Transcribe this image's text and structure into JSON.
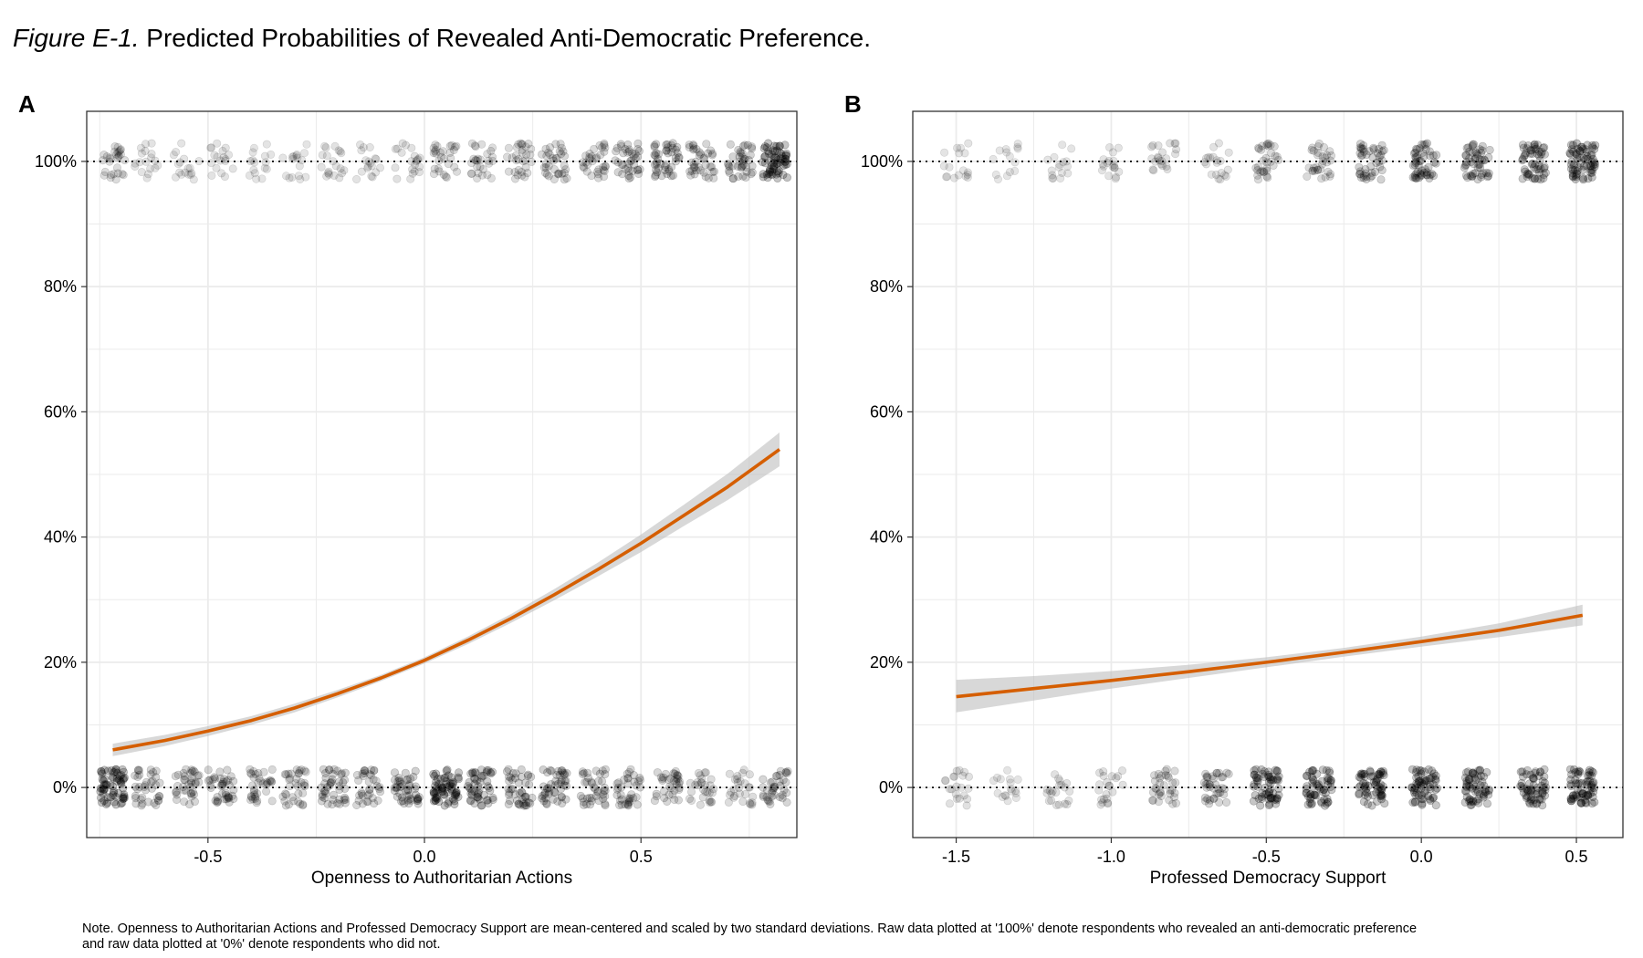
{
  "figure": {
    "label": "Figure E-1.",
    "title": "Predicted Probabilities of Revealed Anti-Democratic Preference.",
    "note_line1": "Note. Openness to Authoritarian Actions and Professed Democracy Support are mean-centered and scaled by two standard deviations. Raw data plotted at '100%' denote respondents who revealed an anti-democratic preference",
    "note_line2": "and raw data plotted at '0%' denote respondents who did not."
  },
  "colors": {
    "line": "#d55e00",
    "ribbon": "#bebebe",
    "points": "#000000",
    "grid": "#ebebeb",
    "panel_border": "#333333"
  },
  "chart_data": [
    {
      "panel": "A",
      "type": "line",
      "xlabel": "Openness to Authoritarian Actions",
      "ylabel": "",
      "xlim": [
        -0.78,
        0.86
      ],
      "ylim": [
        -0.08,
        1.08
      ],
      "xticks": [
        -0.5,
        0.0,
        0.5
      ],
      "xtick_labels": [
        "-0.5",
        "0.0",
        "0.5"
      ],
      "yticks": [
        0,
        0.2,
        0.4,
        0.6,
        0.8,
        1.0
      ],
      "ytick_labels": [
        "0%",
        "20%",
        "40%",
        "60%",
        "80%",
        "100%"
      ],
      "reference_lines": [
        0,
        1
      ],
      "series": [
        {
          "x": [
            -0.72,
            -0.6,
            -0.5,
            -0.4,
            -0.3,
            -0.2,
            -0.1,
            0.0,
            0.1,
            0.2,
            0.3,
            0.4,
            0.5,
            0.6,
            0.7,
            0.82
          ],
          "y": [
            0.06,
            0.075,
            0.09,
            0.107,
            0.127,
            0.15,
            0.175,
            0.203,
            0.235,
            0.27,
            0.308,
            0.348,
            0.39,
            0.435,
            0.48,
            0.54
          ],
          "lower": [
            0.05,
            0.066,
            0.082,
            0.1,
            0.12,
            0.144,
            0.17,
            0.198,
            0.229,
            0.263,
            0.299,
            0.337,
            0.376,
            0.418,
            0.459,
            0.513
          ],
          "upper": [
            0.07,
            0.084,
            0.098,
            0.114,
            0.134,
            0.156,
            0.18,
            0.208,
            0.241,
            0.277,
            0.317,
            0.359,
            0.404,
            0.452,
            0.501,
            0.567
          ]
        }
      ],
      "raw_levels": [
        -0.72,
        -0.64,
        -0.55,
        -0.47,
        -0.38,
        -0.3,
        -0.21,
        -0.13,
        -0.04,
        0.05,
        0.13,
        0.22,
        0.3,
        0.39,
        0.47,
        0.56,
        0.64,
        0.73,
        0.81
      ],
      "raw_density_top": [
        0.35,
        0.14,
        0.12,
        0.14,
        0.1,
        0.12,
        0.18,
        0.15,
        0.2,
        0.35,
        0.32,
        0.38,
        0.45,
        0.42,
        0.52,
        0.62,
        0.5,
        0.55,
        1.0
      ],
      "raw_density_bottom": [
        1.0,
        0.5,
        0.5,
        0.55,
        0.45,
        0.45,
        0.6,
        0.48,
        0.65,
        1.0,
        0.75,
        0.62,
        0.65,
        0.55,
        0.5,
        0.48,
        0.35,
        0.3,
        0.5
      ]
    },
    {
      "panel": "B",
      "type": "line",
      "xlabel": "Professed Democracy Support",
      "ylabel": "",
      "xlim": [
        -1.64,
        0.65
      ],
      "ylim": [
        -0.08,
        1.08
      ],
      "xticks": [
        -1.5,
        -1.0,
        -0.5,
        0.0,
        0.5
      ],
      "xtick_labels": [
        "-1.5",
        "-1.0",
        "-0.5",
        "0.0",
        "0.5"
      ],
      "yticks": [
        0,
        0.2,
        0.4,
        0.6,
        0.8,
        1.0
      ],
      "ytick_labels": [
        "0%",
        "20%",
        "40%",
        "60%",
        "80%",
        "100%"
      ],
      "reference_lines": [
        0,
        1
      ],
      "series": [
        {
          "x": [
            -1.5,
            -1.25,
            -1.0,
            -0.75,
            -0.5,
            -0.25,
            0.0,
            0.25,
            0.52
          ],
          "y": [
            0.145,
            0.158,
            0.171,
            0.185,
            0.2,
            0.216,
            0.233,
            0.251,
            0.275
          ],
          "lower": [
            0.12,
            0.139,
            0.158,
            0.175,
            0.192,
            0.209,
            0.225,
            0.24,
            0.259
          ],
          "upper": [
            0.172,
            0.178,
            0.186,
            0.196,
            0.208,
            0.223,
            0.241,
            0.262,
            0.292
          ]
        }
      ],
      "raw_levels": [
        -1.5,
        -1.34,
        -1.17,
        -1.0,
        -0.83,
        -0.66,
        -0.5,
        -0.33,
        -0.16,
        0.01,
        0.18,
        0.36,
        0.52
      ],
      "raw_density_top": [
        0.12,
        0.08,
        0.1,
        0.14,
        0.22,
        0.18,
        0.4,
        0.4,
        0.62,
        0.72,
        0.72,
        0.82,
        1.0
      ],
      "raw_density_bottom": [
        0.2,
        0.12,
        0.2,
        0.22,
        0.42,
        0.5,
        0.95,
        0.9,
        0.95,
        0.95,
        0.9,
        0.9,
        1.0
      ]
    }
  ]
}
